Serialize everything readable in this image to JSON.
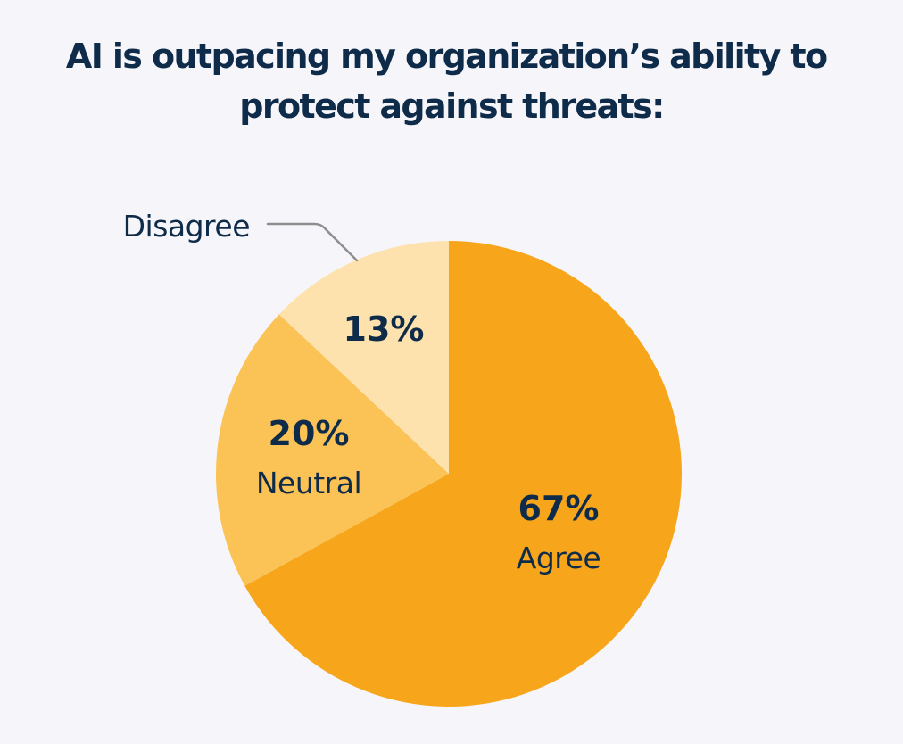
{
  "chart_data": {
    "type": "pie",
    "title": "AI is outpacing my organization’s ability to protect against threats:",
    "title_lines": [
      "AI is outpacing my organization’s ability to",
      "protect against threats:"
    ],
    "start": "12 o'clock",
    "direction": "clockwise",
    "slices": [
      {
        "label": "Agree",
        "value": 67,
        "value_label": "67%",
        "color": "#F7A61C"
      },
      {
        "label": "Neutral",
        "value": 20,
        "value_label": "20%",
        "color": "#FBC256"
      },
      {
        "label": "Disagree",
        "value": 13,
        "value_label": "13%",
        "color": "#FEE2AE"
      }
    ],
    "annotations": [
      {
        "text": "Disagree",
        "target": "Disagree",
        "style": "leader-line",
        "placement": "outside-top-left"
      }
    ],
    "legend": "none",
    "grid": false
  },
  "colors": {
    "background": "#F6F6FA",
    "text": "#0F2B4A",
    "leader_line": "#8E8E8E"
  }
}
